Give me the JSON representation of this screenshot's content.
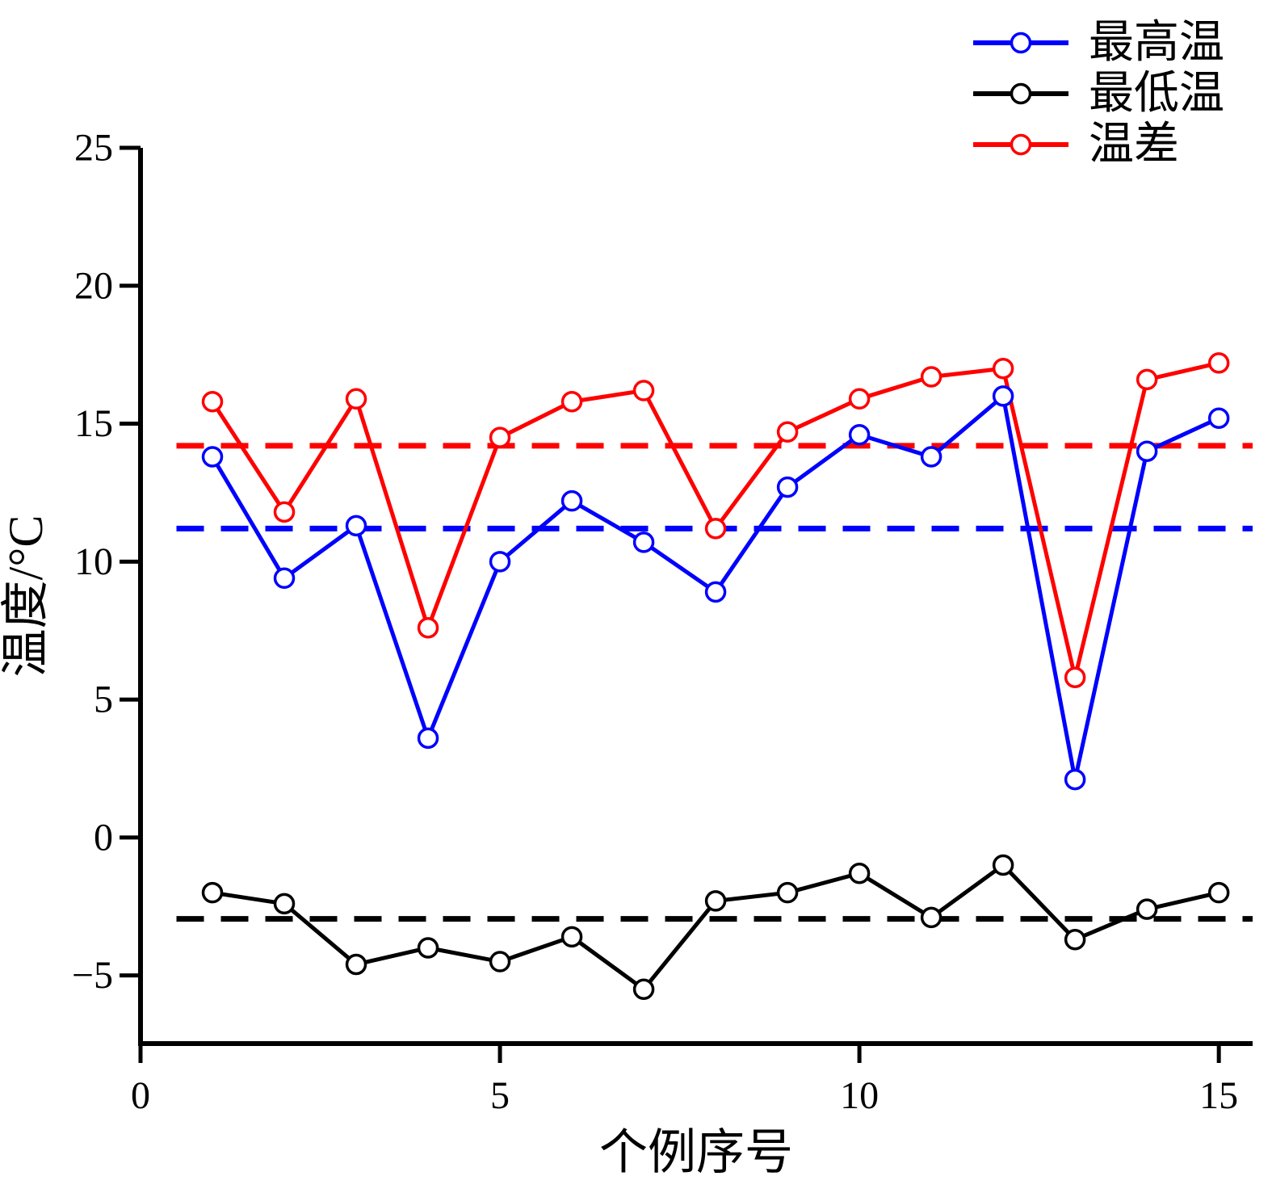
{
  "chart_data": {
    "type": "line",
    "title": "",
    "xlabel": "个例序号",
    "ylabel": "温度/°C",
    "x": [
      1,
      2,
      3,
      4,
      5,
      6,
      7,
      8,
      9,
      10,
      11,
      12,
      13,
      14,
      15
    ],
    "series": [
      {
        "name": "最高温",
        "color": "#0000ff",
        "values": [
          13.8,
          9.4,
          11.3,
          3.6,
          10.0,
          12.2,
          10.7,
          8.9,
          12.7,
          14.6,
          13.8,
          16.0,
          2.1,
          14.0,
          15.2
        ],
        "mean_line": 11.2
      },
      {
        "name": "最低温",
        "color": "#000000",
        "values": [
          -2.0,
          -2.4,
          -4.6,
          -4.0,
          -4.5,
          -3.6,
          -5.5,
          -2.3,
          -2.0,
          -1.3,
          -2.9,
          -1.0,
          -3.7,
          -2.6,
          -2.0
        ],
        "mean_line": -2.95
      },
      {
        "name": "温差",
        "color": "#ff0000",
        "values": [
          15.8,
          11.8,
          15.9,
          7.6,
          14.5,
          15.8,
          16.2,
          11.2,
          14.7,
          15.9,
          16.7,
          17.0,
          5.8,
          16.6,
          17.2
        ],
        "mean_line": 14.2
      }
    ],
    "xticks": [
      0,
      5,
      10,
      15
    ],
    "yticks": [
      -5,
      0,
      5,
      10,
      15,
      20,
      25
    ],
    "xlim": [
      0,
      15.47
    ],
    "ylim": [
      -7.47,
      25
    ],
    "grid": false,
    "legend_position": "top-right",
    "marker": "open-circle"
  }
}
